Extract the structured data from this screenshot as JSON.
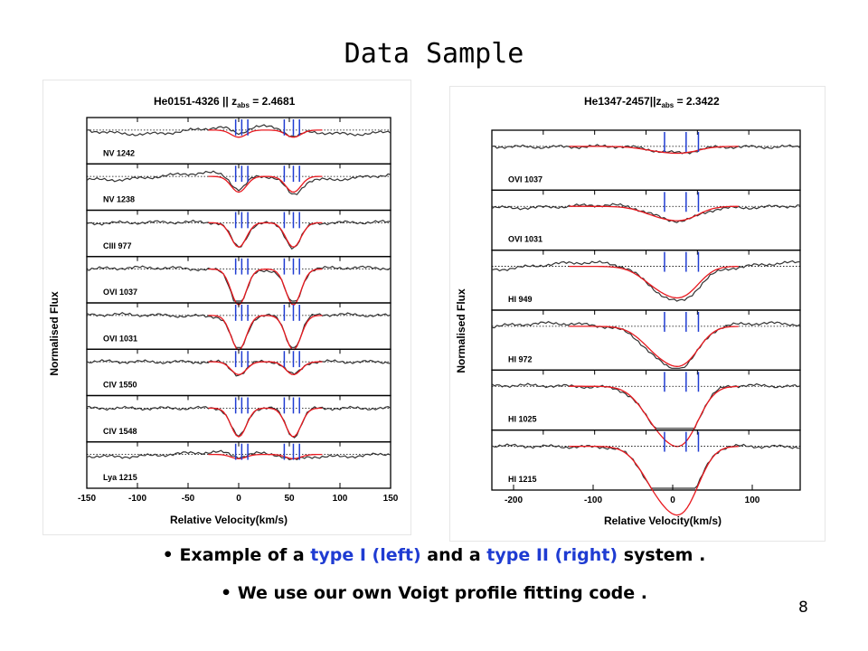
{
  "slide": {
    "title": "Data Sample",
    "page_number": "8"
  },
  "captions": {
    "line1": {
      "bullet": "•",
      "part1": "Example of a ",
      "type1": "type I (left)",
      "part2": " and a ",
      "type2": "type II (right)",
      "part3": " system ."
    },
    "line2": "• We use our own Voigt profile fitting code ."
  },
  "figures": {
    "left": {
      "header": "He0151-4326 || z",
      "header_sub": "abs",
      "header_value": " = 2.4681",
      "ylabel": "Normalised Flux",
      "xlabel": "Relative Velocity(km/s)",
      "xticks": [
        "-150",
        "-100",
        "-50",
        "0",
        "50",
        "100",
        "150"
      ],
      "panels": [
        "NV 1242",
        "NV 1238",
        "CIII 977",
        "OVI 1037",
        "OVI 1031",
        "CIV 1550",
        "CIV 1548",
        "Lya 1215"
      ]
    },
    "right": {
      "header": "He1347-2457||z",
      "header_sub": "abs",
      "header_value": " = 2.3422",
      "ylabel": "Normalised Flux",
      "xlabel": "Relative Velocity(km/s)",
      "xticks": [
        "-200",
        "-100",
        "0",
        "100"
      ],
      "panels": [
        "OVI 1037",
        "OVI 1031",
        "HI 949",
        "HI 972",
        "HI 1025",
        "HI 1215"
      ]
    }
  },
  "colors": {
    "fit": "#e8191f",
    "component_marks": "#1f3cd2",
    "data": "#333333"
  }
}
